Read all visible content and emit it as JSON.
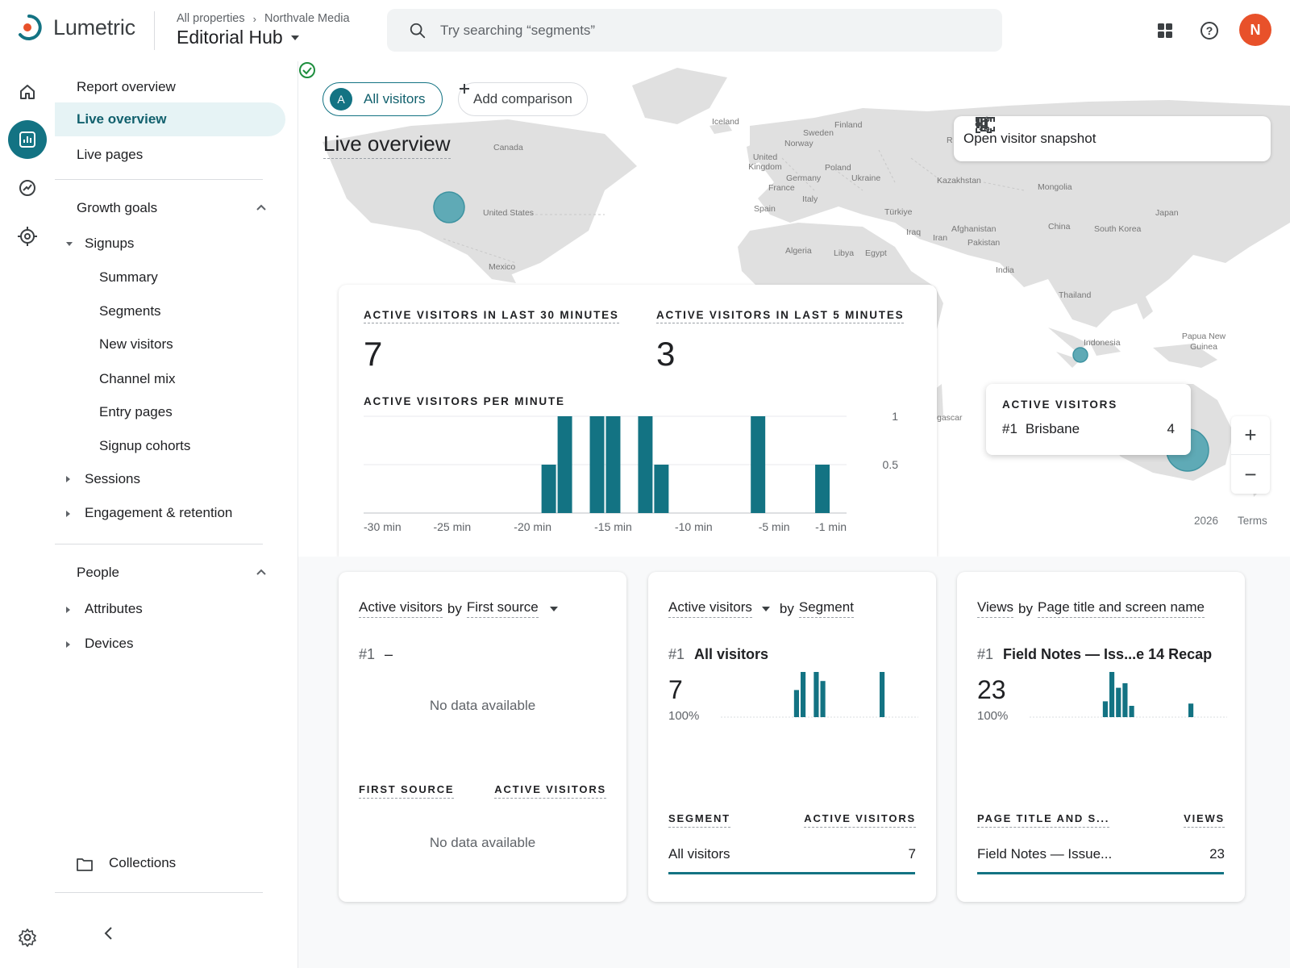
{
  "app": {
    "name": "Lumetric",
    "accent": "#137383",
    "logo_dot": "#e8512a"
  },
  "breadcrumb": {
    "parent": "All properties",
    "current": "Northvale Media"
  },
  "property": {
    "name": "Editorial Hub"
  },
  "search": {
    "placeholder": "Try searching “segments”"
  },
  "header_icons": [
    "apps-grid-icon",
    "help-icon"
  ],
  "user": {
    "initial": "N"
  },
  "rail": [
    {
      "name": "home-icon",
      "active": false
    },
    {
      "name": "reports-icon",
      "active": true
    },
    {
      "name": "explore-icon",
      "active": false
    },
    {
      "name": "advertising-target-icon",
      "active": false
    },
    {
      "name": "settings-icon",
      "active": false
    }
  ],
  "nav": {
    "report_overview": "Report overview",
    "live_overview": "Live overview",
    "live_pages": "Live pages",
    "growth_goals": "Growth goals",
    "signups": "Signups",
    "signup_children": [
      "Summary",
      "Segments",
      "New visitors",
      "Channel mix",
      "Entry pages",
      "Signup cohorts"
    ],
    "sessions": "Sessions",
    "engagement": "Engagement & retention",
    "people": "People",
    "attributes": "Attributes",
    "devices": "Devices",
    "collections": "Collections"
  },
  "toolbar": {
    "segment_badge": "A",
    "segment_label": "All visitors",
    "add_comparison": "Add comparison"
  },
  "page": {
    "title": "Live overview"
  },
  "snapshot": {
    "label": "Open visitor snapshot"
  },
  "map": {
    "labels": [
      "Iceland",
      "Finland",
      "Sweden",
      "Norway",
      "United Kingdom",
      "Poland",
      "Germany",
      "Ukraine",
      "France",
      "Italy",
      "Spain",
      "Kazakhstan",
      "Mongolia",
      "Türkiye",
      "Japan",
      "Canada",
      "United States",
      "Mexico",
      "China",
      "South Korea",
      "Iraq",
      "Iran",
      "Afghanistan",
      "Pakistan",
      "Algeria",
      "Libya",
      "Egypt",
      "India",
      "Thailand",
      "Indonesia",
      "Papua New Guinea",
      "gascar",
      "R"
    ],
    "footer_year": "2026",
    "footer_terms": "Terms"
  },
  "stats": {
    "last30_label": "ACTIVE VISITORS IN LAST 30 MINUTES",
    "last30_value": "7",
    "last5_label": "ACTIVE VISITORS IN LAST 5 MINUTES",
    "last5_value": "3",
    "per_minute_label": "ACTIVE VISITORS PER MINUTE"
  },
  "chart_data": {
    "type": "bar",
    "title": "ACTIVE VISITORS PER MINUTE",
    "x_ticks": [
      "-30 min",
      "-25 min",
      "-20 min",
      "-15 min",
      "-10 min",
      "-5 min",
      "-1 min"
    ],
    "y_ticks": [
      "1",
      "0.5"
    ],
    "ylim": [
      0,
      1
    ],
    "minutes_ago": [
      30,
      29,
      28,
      27,
      26,
      25,
      24,
      23,
      22,
      21,
      20,
      19,
      18,
      17,
      16,
      15,
      14,
      13,
      12,
      11,
      10,
      9,
      8,
      7,
      6,
      5,
      4,
      3,
      2,
      1
    ],
    "values": [
      0,
      0,
      0,
      0,
      0,
      0,
      0,
      0,
      0,
      0,
      0,
      0.5,
      1,
      0,
      1,
      1,
      0,
      1,
      0.5,
      0,
      0,
      0,
      0,
      0,
      1,
      0,
      0,
      0,
      0.5,
      0
    ],
    "color": "#137383"
  },
  "tooltip": {
    "title": "ACTIVE VISITORS",
    "rank": "#1",
    "city": "Brisbane",
    "value": "4"
  },
  "zoom": {
    "in": "+",
    "out": "−"
  },
  "cards": [
    {
      "metric": "Active visitors",
      "by": "by",
      "dimension": "First source",
      "rank": "#1",
      "rank_name": "–",
      "no_data": "No data available",
      "col_left": "FIRST SOURCE",
      "col_right": "ACTIVE VISITORS",
      "no_data_table": "No data available"
    },
    {
      "metric": "Active visitors",
      "by": "by",
      "dimension": "Segment",
      "rank": "#1",
      "rank_name": "All visitors",
      "total": "7",
      "percent": "100%",
      "spark_values": [
        0,
        0,
        0,
        0,
        0,
        0,
        0,
        0,
        0,
        0,
        0,
        0.6,
        1,
        0,
        1,
        0.8,
        0,
        0,
        0,
        0,
        0,
        0,
        0,
        0,
        1,
        0,
        0,
        0,
        0,
        0
      ],
      "col_left": "SEGMENT",
      "col_right": "ACTIVE VISITORS",
      "row_label": "All visitors",
      "row_value": "7"
    },
    {
      "metric": "Views",
      "by": "by",
      "dimension": "Page title and screen name",
      "rank": "#1",
      "rank_name": "Field Notes — Iss...e 14 Recap",
      "total": "23",
      "percent": "100%",
      "spark_values": [
        0,
        0,
        0,
        0,
        0,
        0,
        0,
        0,
        0,
        0,
        0,
        0.35,
        1,
        0.65,
        0.75,
        0.25,
        0,
        0,
        0,
        0,
        0,
        0,
        0,
        0,
        0.3,
        0,
        0,
        0,
        0,
        0
      ],
      "col_left": "PAGE TITLE AND S...",
      "col_right": "VIEWS",
      "row_label": "Field Notes — Issue...",
      "row_value": "23"
    }
  ]
}
